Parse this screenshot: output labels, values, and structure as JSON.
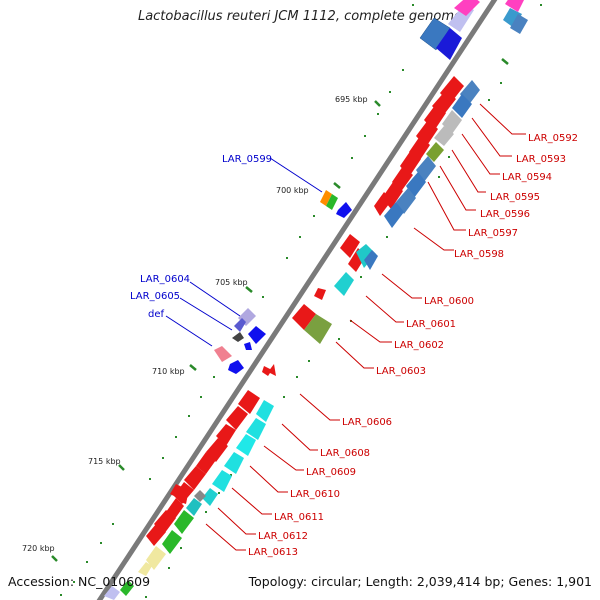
{
  "title": "Lactobacillus reuteri JCM 1112, complete genome",
  "footer": {
    "accession": "Accession: NC_010609",
    "summary": "Topology: circular; Length: 2,039,414 bp; Genes: 1,901"
  },
  "ticks": [
    "695 kbp",
    "700 kbp",
    "705 kbp",
    "710 kbp",
    "715 kbp",
    "720 kbp"
  ],
  "labels_outer": [
    "LAR_0599",
    "LAR_0604",
    "LAR_0605",
    "def"
  ],
  "labels_inner": [
    "LAR_0592",
    "LAR_0593",
    "LAR_0594",
    "LAR_0595",
    "LAR_0596",
    "LAR_0597",
    "LAR_0598",
    "LAR_0600",
    "LAR_0601",
    "LAR_0602",
    "LAR_0603",
    "LAR_0606",
    "LAR_0608",
    "LAR_0609",
    "LAR_0610",
    "LAR_0611",
    "LAR_0612",
    "LAR_0613"
  ],
  "colors": {
    "label_outer": "#0000cc",
    "label_inner": "#cc0000",
    "backbone": "#808080",
    "tick": "#2a8a2a"
  }
}
